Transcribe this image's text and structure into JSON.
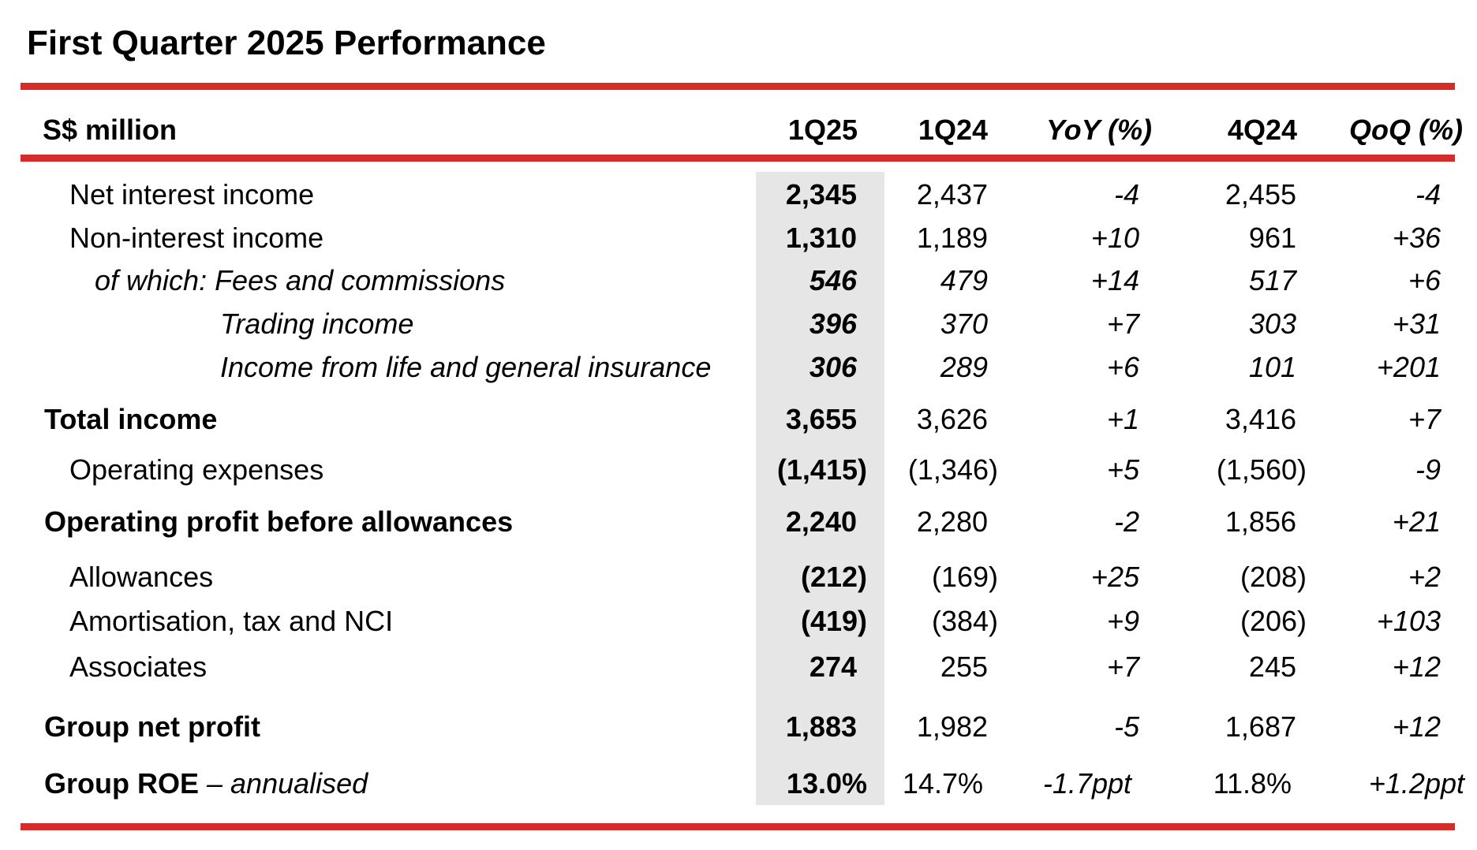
{
  "title": "First Quarter 2025 Performance",
  "colors": {
    "accent": "#d52b2b",
    "highlight": "#e6e6e6"
  },
  "header": {
    "label": "S$ million",
    "c1q25": "1Q25",
    "c1q24": "1Q24",
    "yoy": "YoY (%)",
    "c4q24": "4Q24",
    "qoq": "QoQ (%)"
  },
  "rows": [
    {
      "label": "Net interest income",
      "c1q25": "2,345",
      "c1q24": "2,437",
      "yoy": "-4",
      "c4q24": "2,455",
      "qoq": "-4"
    },
    {
      "label": "Non-interest income",
      "c1q25": "1,310",
      "c1q24": "1,189",
      "yoy": "+10",
      "c4q24": "961",
      "qoq": "+36"
    },
    {
      "label": "of which: Fees and commissions",
      "c1q25": "546",
      "c1q24": "479",
      "yoy": "+14",
      "c4q24": "517",
      "qoq": "+6"
    },
    {
      "label": "Trading income",
      "c1q25": "396",
      "c1q24": "370",
      "yoy": "+7",
      "c4q24": "303",
      "qoq": "+31"
    },
    {
      "label": "Income from life and general insurance",
      "c1q25": "306",
      "c1q24": "289",
      "yoy": "+6",
      "c4q24": "101",
      "qoq": "+201"
    },
    {
      "label": "Total income",
      "c1q25": "3,655",
      "c1q24": "3,626",
      "yoy": "+1",
      "c4q24": "3,416",
      "qoq": "+7"
    },
    {
      "label": "Operating expenses",
      "c1q25": "(1,415)",
      "c1q24": "(1,346)",
      "yoy": "+5",
      "c4q24": "(1,560)",
      "qoq": "-9"
    },
    {
      "label": "Operating profit before allowances",
      "c1q25": "2,240",
      "c1q24": "2,280",
      "yoy": "-2",
      "c4q24": "1,856",
      "qoq": "+21"
    },
    {
      "label": "Allowances",
      "c1q25": "(212)",
      "c1q24": "(169)",
      "yoy": "+25",
      "c4q24": "(208)",
      "qoq": "+2"
    },
    {
      "label": "Amortisation, tax and NCI",
      "c1q25": "(419)",
      "c1q24": "(384)",
      "yoy": "+9",
      "c4q24": "(206)",
      "qoq": "+103"
    },
    {
      "label": "Associates",
      "c1q25": "274",
      "c1q24": "255",
      "yoy": "+7",
      "c4q24": "245",
      "qoq": "+12"
    },
    {
      "label": "Group net profit",
      "c1q25": "1,883",
      "c1q24": "1,982",
      "yoy": "-5",
      "c4q24": "1,687",
      "qoq": "+12"
    },
    {
      "label": "Group ROE",
      "label_suffix": "– annualised",
      "c1q25": "13.0%",
      "c1q24": "14.7%",
      "yoy": "-1.7ppt",
      "c4q24": "11.8%",
      "qoq": "+1.2ppt"
    }
  ]
}
